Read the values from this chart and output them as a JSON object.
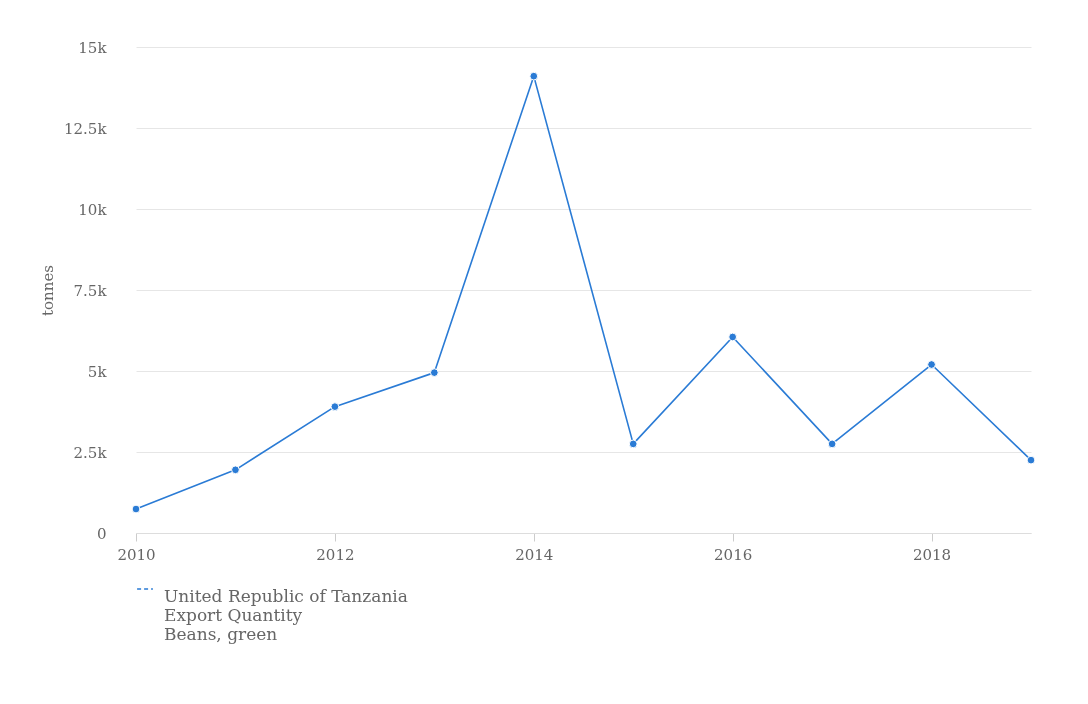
{
  "chart_data": {
    "type": "line",
    "ylabel": "tonnes",
    "x": [
      2010,
      2011,
      2012,
      2013,
      2014,
      2015,
      2016,
      2017,
      2018,
      2019
    ],
    "series": [
      {
        "name": "United Republic of Tanzania\nExport Quantity\nBeans, green",
        "color": "#2a7bd5",
        "values": [
          740,
          1950,
          3900,
          4950,
          14100,
          2750,
          6050,
          2750,
          5200,
          2250
        ]
      }
    ],
    "xlim": [
      2010,
      2019
    ],
    "xticks": [
      2010,
      2012,
      2014,
      2016,
      2018
    ],
    "ylim": [
      0,
      15000
    ],
    "yticks": [
      0,
      {
        "value": 2500,
        "label": "2.5k"
      },
      {
        "value": 5000,
        "label": "5k"
      },
      {
        "value": 7500,
        "label": "7.5k"
      },
      {
        "value": 10000,
        "label": "10k"
      },
      {
        "value": 12500,
        "label": "12.5k"
      },
      {
        "value": 15000,
        "label": "15k"
      }
    ],
    "grid": "y",
    "legend": "bottom",
    "marker": "circle",
    "line_style": "solid"
  }
}
